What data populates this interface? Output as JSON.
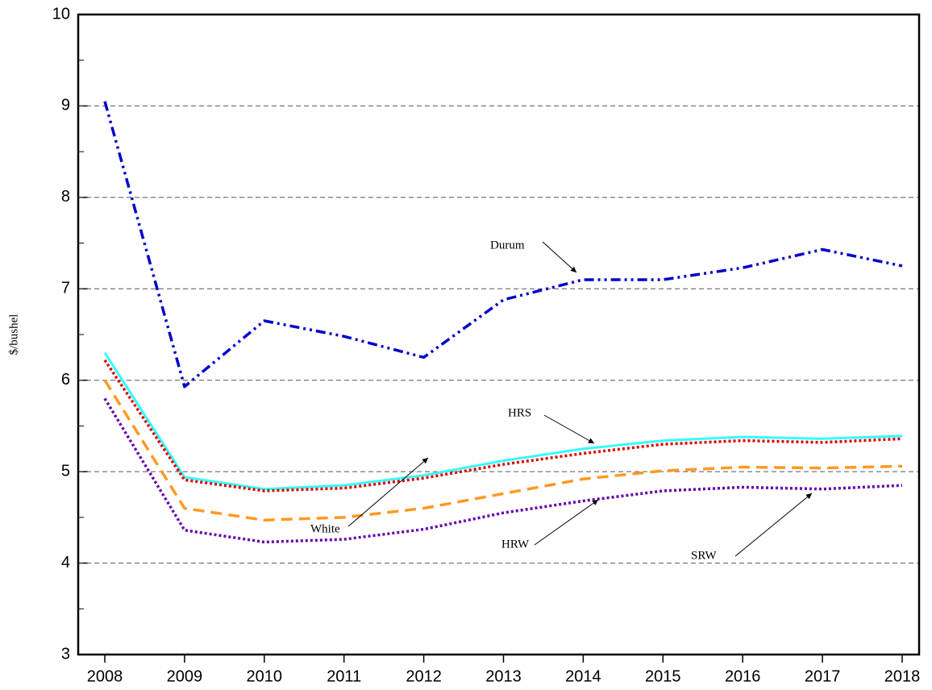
{
  "chart_data": {
    "type": "line",
    "y_label": "$/bushel",
    "categories": [
      "2008",
      "2009",
      "2010",
      "2011",
      "2012",
      "2013",
      "2014",
      "2015",
      "2016",
      "2017",
      "2018"
    ],
    "ylim": [
      3,
      10
    ],
    "yticks": [
      3,
      4,
      5,
      6,
      7,
      8,
      9,
      10
    ],
    "yminorticks": [
      3.5,
      4.5,
      5.5,
      6.5,
      7.5,
      8.5,
      9.5
    ],
    "grid": true,
    "series": [
      {
        "name": "Durum",
        "color": "#0000cc",
        "style": "dashdotdot",
        "values": [
          9.05,
          5.93,
          6.65,
          6.48,
          6.25,
          6.88,
          7.1,
          7.1,
          7.23,
          7.43,
          7.25
        ]
      },
      {
        "name": "HRS",
        "color": "#33ffff",
        "style": "solid",
        "values": [
          6.3,
          4.94,
          4.81,
          4.85,
          4.96,
          5.12,
          5.25,
          5.34,
          5.38,
          5.36,
          5.39
        ]
      },
      {
        "name": "White",
        "color": "#dd0000",
        "style": "dotted",
        "values": [
          6.22,
          4.91,
          4.79,
          4.82,
          4.93,
          5.08,
          5.2,
          5.3,
          5.34,
          5.32,
          5.36
        ]
      },
      {
        "name": "HRW",
        "color": "#ff9922",
        "style": "dashed",
        "values": [
          6.0,
          4.6,
          4.47,
          4.5,
          4.6,
          4.76,
          4.92,
          5.01,
          5.05,
          5.04,
          5.06
        ]
      },
      {
        "name": "SRW",
        "color": "#6600aa",
        "style": "dotted",
        "values": [
          5.8,
          4.36,
          4.23,
          4.26,
          4.37,
          4.55,
          4.68,
          4.79,
          4.83,
          4.81,
          4.85
        ]
      }
    ]
  }
}
